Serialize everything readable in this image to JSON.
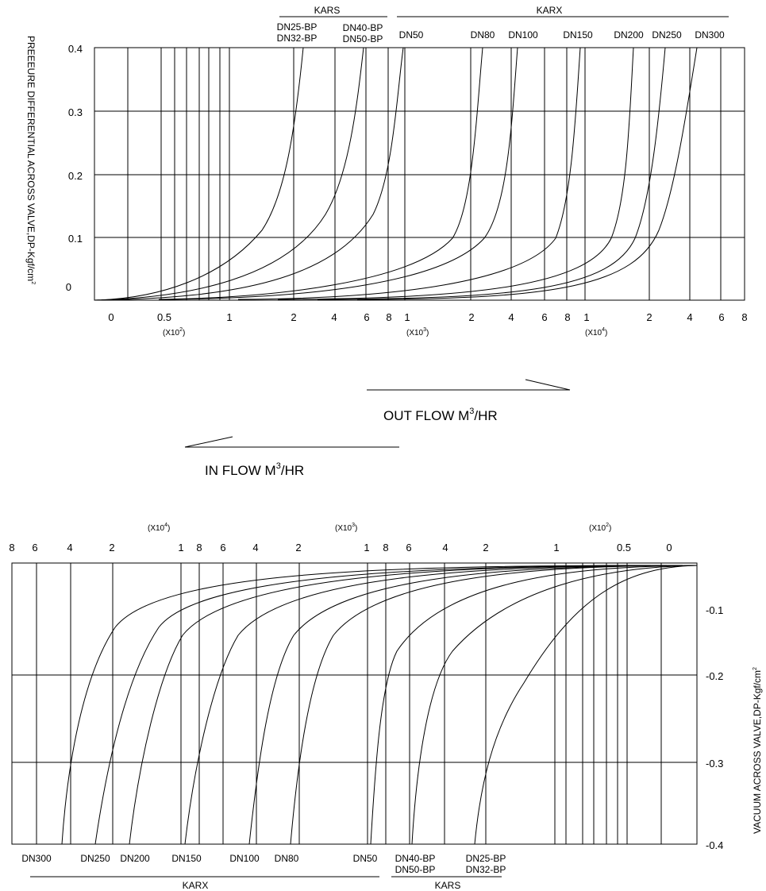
{
  "top": {
    "group_karx": "KARX",
    "group_kars": "KARS",
    "curve_labels": [
      "DN25-BP",
      "DN32-BP",
      "DN40-BP",
      "DN50-BP",
      "DN50",
      "DN80",
      "DN100",
      "DN150",
      "DN200",
      "DN250",
      "DN300"
    ],
    "y_ticks": [
      "0.4",
      "0.3",
      "0.2",
      "0.1",
      "0"
    ],
    "x_ticks": [
      "0",
      "0.5",
      "1",
      "2",
      "4",
      "6",
      "8",
      "1",
      "2",
      "4",
      "6",
      "8",
      "1",
      "2",
      "4",
      "6",
      "8"
    ],
    "multipliers": [
      "(X10",
      "2",
      ")",
      "(X10",
      "3",
      ")",
      "(X10",
      "4",
      ")"
    ],
    "y_axis_label": "PREEEURE DIFFERENTIAL ACROSS VALVE,DP-Kgf/cm",
    "y_axis_sup": "2"
  },
  "flow": {
    "out_label": "OUT FLOW M",
    "out_sup": "3",
    "out_suffix": "/HR",
    "in_label": "IN FLOW M",
    "in_sup": "3",
    "in_suffix": "/HR"
  },
  "bottom": {
    "x_ticks": [
      "8",
      "6",
      "4",
      "2",
      "1",
      "8",
      "6",
      "4",
      "2",
      "1",
      "8",
      "6",
      "4",
      "2",
      "1",
      "0.5",
      "0"
    ],
    "multipliers": [
      "(X10",
      "4",
      ")",
      "(X10",
      "3",
      ")",
      "(X10",
      "2",
      ")"
    ],
    "y_ticks": [
      "-0.1",
      "-0.2",
      "-0.3",
      "-0.4"
    ],
    "y_axis_label": "VACUUM ACROSS VALVE,DP-Kgf/cm",
    "y_axis_sup": "2",
    "curve_labels": [
      "DN300",
      "DN250",
      "DN200",
      "DN150",
      "DN100",
      "DN80",
      "DN50",
      "DN40-BP",
      "DN50-BP",
      "DN25-BP",
      "DN32-BP"
    ],
    "group_karx": "KARX",
    "group_kars": "KARS"
  },
  "chart_data": [
    {
      "type": "line",
      "title": "",
      "xlabel": "",
      "ylabel": "PREEEURE DIFFERENTIAL ACROSS VALVE,DP-Kgf/cm2",
      "x_scale": "log",
      "x_tick_labels": [
        "0",
        "0.5 (x10^2)",
        "1",
        "2",
        "4",
        "6",
        "8",
        "1 (x10^3)",
        "2",
        "4",
        "6",
        "8",
        "1 (x10^4)",
        "2",
        "4",
        "6",
        "8"
      ],
      "ylim": [
        0,
        0.4
      ],
      "grid": true,
      "series": [
        {
          "name": "DN25-BP / DN32-BP",
          "x": [
            50,
            100,
            150,
            200,
            230
          ],
          "y": [
            0,
            0.03,
            0.11,
            0.25,
            0.4
          ]
        },
        {
          "name": "DN40-BP / DN50-BP",
          "x": [
            80,
            200,
            400,
            600,
            650
          ],
          "y": [
            0,
            0.02,
            0.12,
            0.32,
            0.4
          ]
        },
        {
          "name": "DN50",
          "x": [
            200,
            400,
            700,
            1000,
            1030
          ],
          "y": [
            0,
            0.04,
            0.2,
            0.35,
            0.4
          ]
        },
        {
          "name": "DN80",
          "x": [
            500,
            1000,
            2000,
            2800,
            3000
          ],
          "y": [
            0,
            0.03,
            0.1,
            0.28,
            0.4
          ]
        },
        {
          "name": "DN100",
          "x": [
            500,
            1500,
            3000,
            4300,
            4400
          ],
          "y": [
            0,
            0.03,
            0.12,
            0.35,
            0.4
          ]
        },
        {
          "name": "DN150",
          "x": [
            1000,
            3000,
            6000,
            9000,
            9500
          ],
          "y": [
            0,
            0.03,
            0.12,
            0.35,
            0.4
          ]
        },
        {
          "name": "DN200",
          "x": [
            2000,
            6000,
            11000,
            15000,
            16000
          ],
          "y": [
            0,
            0.04,
            0.13,
            0.35,
            0.4
          ]
        },
        {
          "name": "DN250",
          "x": [
            2000,
            8000,
            15000,
            21000,
            22000
          ],
          "y": [
            0,
            0.03,
            0.12,
            0.35,
            0.4
          ]
        },
        {
          "name": "DN300",
          "x": [
            4000,
            10000,
            20000,
            40000,
            42000
          ],
          "y": [
            0,
            0.02,
            0.1,
            0.35,
            0.4
          ]
        }
      ]
    },
    {
      "type": "line",
      "title": "",
      "xlabel": "",
      "ylabel": "VACUUM ACROSS VALVE,DP-Kgf/cm2",
      "x_scale": "log",
      "x_tick_labels": [
        "8",
        "6",
        "4",
        "2",
        "1 (x10^4)",
        "8",
        "6",
        "4",
        "2",
        "1 (x10^3)",
        "8",
        "6",
        "4",
        "2",
        "1 (x10^2)",
        "0.5",
        "0"
      ],
      "ylim": [
        0,
        -0.4
      ],
      "grid": true,
      "series": [
        {
          "name": "DN25-BP / DN32-BP",
          "x": [
            50,
            100,
            150,
            190,
            200
          ],
          "y": [
            0,
            -0.04,
            -0.13,
            -0.35,
            -0.4
          ]
        },
        {
          "name": "DN40-BP / DN50-BP",
          "x": [
            80,
            200,
            400,
            650,
            700
          ],
          "y": [
            0,
            -0.03,
            -0.12,
            -0.35,
            -0.4
          ]
        },
        {
          "name": "DN50",
          "x": [
            200,
            400,
            800,
            1100,
            1150
          ],
          "y": [
            0,
            -0.03,
            -0.13,
            -0.35,
            -0.4
          ]
        },
        {
          "name": "DN80",
          "x": [
            500,
            1000,
            1800,
            2300,
            2400
          ],
          "y": [
            0,
            -0.03,
            -0.12,
            -0.35,
            -0.4
          ]
        },
        {
          "name": "DN100",
          "x": [
            500,
            1500,
            3000,
            3600,
            3700
          ],
          "y": [
            0,
            -0.03,
            -0.12,
            -0.35,
            -0.4
          ]
        },
        {
          "name": "DN150",
          "x": [
            1000,
            3000,
            6000,
            8200,
            8500
          ],
          "y": [
            0,
            -0.03,
            -0.12,
            -0.35,
            -0.4
          ]
        },
        {
          "name": "DN200",
          "x": [
            2000,
            6000,
            12000,
            17000,
            18000
          ],
          "y": [
            0,
            -0.03,
            -0.12,
            -0.35,
            -0.4
          ]
        },
        {
          "name": "DN250",
          "x": [
            2000,
            8000,
            16000,
            24000,
            25000
          ],
          "y": [
            0,
            -0.03,
            -0.12,
            -0.35,
            -0.4
          ]
        },
        {
          "name": "DN300",
          "x": [
            4000,
            10000,
            22000,
            40000,
            42000
          ],
          "y": [
            0,
            -0.03,
            -0.1,
            -0.35,
            -0.4
          ]
        }
      ]
    }
  ]
}
